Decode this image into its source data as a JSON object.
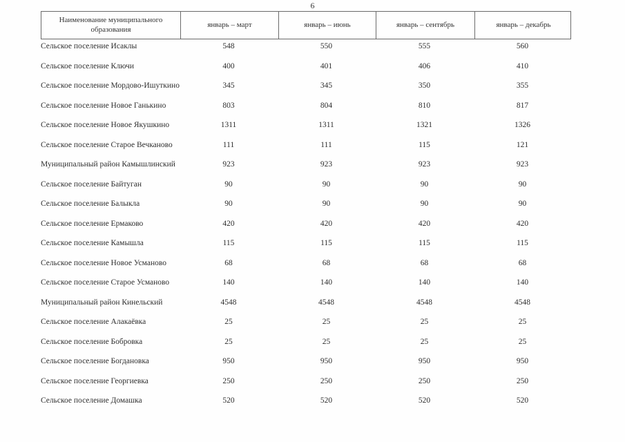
{
  "page_number": "6",
  "table": {
    "header": {
      "name_column": "Наименование муниципального образования",
      "periods": [
        "январь – март",
        "январь – июнь",
        "январь – сентябрь",
        "январь – декабрь"
      ]
    },
    "rows": [
      {
        "name": "Сельское поселение Исаклы",
        "values": [
          "548",
          "550",
          "555",
          "560"
        ]
      },
      {
        "name": "Сельское поселение Ключи",
        "values": [
          "400",
          "401",
          "406",
          "410"
        ]
      },
      {
        "name": "Сельское поселение Мордово-Ишуткино",
        "values": [
          "345",
          "345",
          "350",
          "355"
        ]
      },
      {
        "name": "Сельское поселение Новое Ганькино",
        "values": [
          "803",
          "804",
          "810",
          "817"
        ]
      },
      {
        "name": "Сельское поселение Новое Якушкино",
        "values": [
          "1311",
          "1311",
          "1321",
          "1326"
        ]
      },
      {
        "name": "Сельское поселение Старое Вечканово",
        "values": [
          "111",
          "111",
          "115",
          "121"
        ]
      },
      {
        "name": "Муниципальный район Камышлинский",
        "values": [
          "923",
          "923",
          "923",
          "923"
        ]
      },
      {
        "name": "Сельское поселение Байтуган",
        "values": [
          "90",
          "90",
          "90",
          "90"
        ]
      },
      {
        "name": "Сельское поселение Балыкла",
        "values": [
          "90",
          "90",
          "90",
          "90"
        ]
      },
      {
        "name": "Сельское поселение Ермаково",
        "values": [
          "420",
          "420",
          "420",
          "420"
        ]
      },
      {
        "name": "Сельское поселение Камышла",
        "values": [
          "115",
          "115",
          "115",
          "115"
        ]
      },
      {
        "name": "Сельское поселение Новое Усманово",
        "values": [
          "68",
          "68",
          "68",
          "68"
        ]
      },
      {
        "name": "Сельское поселение Старое Усманово",
        "values": [
          "140",
          "140",
          "140",
          "140"
        ]
      },
      {
        "name": "Муниципальный район Кинельский",
        "values": [
          "4548",
          "4548",
          "4548",
          "4548"
        ]
      },
      {
        "name": "Сельское поселение Алакаёвка",
        "values": [
          "25",
          "25",
          "25",
          "25"
        ]
      },
      {
        "name": "Сельское поселение Бобровка",
        "values": [
          "25",
          "25",
          "25",
          "25"
        ]
      },
      {
        "name": "Сельское поселение Богдановка",
        "values": [
          "950",
          "950",
          "950",
          "950"
        ]
      },
      {
        "name": "Сельское поселение Георгиевка",
        "values": [
          "250",
          "250",
          "250",
          "250"
        ]
      },
      {
        "name": "Сельское поселение Домашка",
        "values": [
          "520",
          "520",
          "520",
          "520"
        ]
      }
    ]
  },
  "colors": {
    "text": "#2e2e2e",
    "border": "#6a6a6a",
    "background": "#ffffff"
  }
}
